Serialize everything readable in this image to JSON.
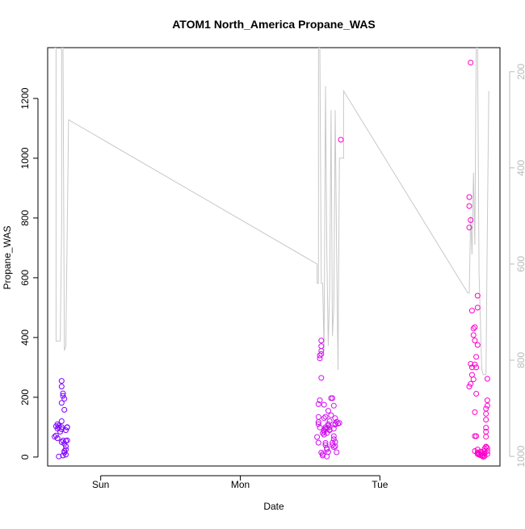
{
  "chart_data": {
    "type": "scatter",
    "title": "ATOM1 North_America Propane_WAS",
    "xlabel": "Date",
    "ylabel": "Propane_WAS",
    "x_ticks": [
      {
        "label": "Sun",
        "x": 0.0
      },
      {
        "label": "Mon",
        "x": 1.0
      },
      {
        "label": "Tue",
        "x": 2.0
      }
    ],
    "xlim": [
      -0.38,
      2.86
    ],
    "ylim": [
      -30,
      1370
    ],
    "y_ticks": [
      0,
      200,
      400,
      600,
      800,
      1000,
      1200
    ],
    "y2_ticks": [
      200,
      400,
      600,
      800,
      1000
    ],
    "y2lim": [
      1020,
      150
    ],
    "y2_reversed": true,
    "colors": {
      "altitude_line": "#c8c8c8",
      "right_axis": "#bbbbbb",
      "early_points": "#6600ff",
      "late_points": "#ee00ee"
    },
    "series": [
      {
        "kind": "points",
        "color": "#8000ff",
        "points": [
          [
            -0.31,
            63
          ],
          [
            -0.33,
            68
          ],
          [
            -0.32,
            72
          ],
          [
            -0.31,
            95
          ],
          [
            -0.32,
            103
          ],
          [
            -0.31,
            110
          ],
          [
            -0.3,
            99
          ],
          [
            -0.3,
            105
          ],
          [
            -0.3,
            2
          ],
          [
            -0.29,
            85
          ],
          [
            -0.28,
            93
          ],
          [
            -0.28,
            100
          ],
          [
            -0.28,
            120
          ],
          [
            -0.28,
            181
          ],
          [
            -0.27,
            55
          ],
          [
            -0.28,
            50
          ],
          [
            -0.28,
            236
          ],
          [
            -0.28,
            255
          ],
          [
            -0.27,
            213
          ],
          [
            -0.27,
            205
          ],
          [
            -0.26,
            195
          ],
          [
            -0.26,
            158
          ],
          [
            -0.26,
            45
          ],
          [
            -0.26,
            20
          ],
          [
            -0.26,
            15
          ],
          [
            -0.27,
            5
          ],
          [
            -0.25,
            8
          ],
          [
            -0.25,
            25
          ],
          [
            -0.25,
            36
          ],
          [
            -0.25,
            54
          ],
          [
            -0.24,
            56
          ],
          [
            -0.25,
            90
          ],
          [
            -0.24,
            99
          ],
          [
            -0.24,
            100
          ]
        ]
      },
      {
        "kind": "points",
        "color": "#d010f0",
        "points": [
          [
            1.55,
            67
          ],
          [
            1.56,
            48
          ],
          [
            1.56,
            117
          ],
          [
            1.56,
            134
          ],
          [
            1.56,
            177
          ],
          [
            1.57,
            190
          ],
          [
            1.56,
            110
          ],
          [
            1.57,
            99
          ],
          [
            1.57,
            330
          ],
          [
            1.57,
            340
          ],
          [
            1.58,
            345
          ],
          [
            1.58,
            355
          ],
          [
            1.58,
            390
          ],
          [
            1.58,
            371
          ],
          [
            1.58,
            265
          ],
          [
            1.58,
            15
          ],
          [
            1.59,
            10
          ],
          [
            1.59,
            5
          ],
          [
            1.59,
            80
          ],
          [
            1.6,
            85
          ],
          [
            1.6,
            90
          ],
          [
            1.6,
            75
          ],
          [
            1.6,
            175
          ],
          [
            1.6,
            130
          ],
          [
            1.61,
            135
          ],
          [
            1.61,
            100
          ],
          [
            1.61,
            95
          ],
          [
            1.61,
            47
          ],
          [
            1.61,
            40
          ],
          [
            1.62,
            30
          ],
          [
            1.62,
            25
          ],
          [
            1.62,
            2
          ],
          [
            1.62,
            80
          ],
          [
            1.62,
            95
          ],
          [
            1.63,
            105
          ],
          [
            1.63,
            110
          ],
          [
            1.63,
            155
          ],
          [
            1.63,
            17
          ],
          [
            1.64,
            90
          ],
          [
            1.64,
            92
          ],
          [
            1.64,
            100
          ],
          [
            1.64,
            120
          ],
          [
            1.65,
            140
          ],
          [
            1.65,
            197
          ],
          [
            1.66,
            197
          ],
          [
            1.66,
            48
          ],
          [
            1.66,
            40
          ],
          [
            1.67,
            33
          ],
          [
            1.67,
            60
          ],
          [
            1.67,
            70
          ],
          [
            1.67,
            95
          ],
          [
            1.67,
            172
          ],
          [
            1.68,
            130
          ],
          [
            1.68,
            112
          ],
          [
            1.68,
            108
          ],
          [
            1.68,
            50
          ],
          [
            1.68,
            36
          ],
          [
            1.69,
            16
          ],
          [
            1.69,
            118
          ],
          [
            1.7,
            112
          ],
          [
            1.71,
            114
          ]
        ]
      },
      {
        "kind": "points",
        "color": "#ff00cc",
        "points": [
          [
            1.72,
            1062
          ]
        ]
      },
      {
        "kind": "points",
        "color": "#ff00cc",
        "points": [
          [
            2.65,
            1320
          ],
          [
            2.64,
            870
          ],
          [
            2.64,
            840
          ],
          [
            2.65,
            793
          ],
          [
            2.64,
            768
          ],
          [
            2.65,
            312
          ],
          [
            2.66,
            300
          ],
          [
            2.65,
            245
          ],
          [
            2.64,
            236
          ],
          [
            2.66,
            275
          ],
          [
            2.67,
            260
          ],
          [
            2.66,
            490
          ],
          [
            2.67,
            430
          ],
          [
            2.67,
            408
          ],
          [
            2.68,
            390
          ],
          [
            2.68,
            435
          ],
          [
            2.68,
            310
          ],
          [
            2.69,
            335
          ],
          [
            2.69,
            300
          ],
          [
            2.7,
            540
          ],
          [
            2.7,
            500
          ],
          [
            2.7,
            375
          ],
          [
            2.69,
            212
          ],
          [
            2.68,
            150
          ],
          [
            2.68,
            70
          ],
          [
            2.69,
            70
          ],
          [
            2.68,
            20
          ],
          [
            2.7,
            15
          ],
          [
            2.7,
            25
          ],
          [
            2.7,
            10
          ],
          [
            2.71,
            12
          ],
          [
            2.71,
            8
          ],
          [
            2.72,
            6
          ],
          [
            2.72,
            18
          ],
          [
            2.73,
            10
          ],
          [
            2.73,
            4
          ],
          [
            2.73,
            15
          ],
          [
            2.74,
            1
          ],
          [
            2.74,
            6
          ],
          [
            2.75,
            3
          ],
          [
            2.75,
            12
          ],
          [
            2.75,
            20
          ],
          [
            2.75,
            28
          ],
          [
            2.76,
            35
          ],
          [
            2.76,
            33
          ],
          [
            2.76,
            68
          ],
          [
            2.76,
            85
          ],
          [
            2.76,
            98
          ],
          [
            2.76,
            125
          ],
          [
            2.76,
            145
          ],
          [
            2.76,
            162
          ],
          [
            2.77,
            172
          ],
          [
            2.77,
            190
          ],
          [
            2.77,
            262
          ],
          [
            2.77,
            30
          ],
          [
            2.77,
            20
          ],
          [
            2.77,
            10
          ]
        ]
      },
      {
        "kind": "line",
        "axis": "right",
        "color": "#c8c8c8",
        "points": [
          [
            -0.33,
            150
          ],
          [
            -0.32,
            150
          ],
          [
            -0.32,
            760
          ],
          [
            -0.29,
            760
          ],
          [
            -0.28,
            520
          ],
          [
            -0.28,
            150
          ],
          [
            -0.27,
            150
          ],
          [
            -0.26,
            780
          ],
          [
            -0.25,
            770
          ],
          [
            -0.23,
            300
          ],
          [
            1.55,
            600
          ],
          [
            1.55,
            640
          ],
          [
            1.56,
            640
          ],
          [
            1.56,
            150
          ],
          [
            1.57,
            150
          ],
          [
            1.58,
            640
          ],
          [
            1.59,
            640
          ],
          [
            1.6,
            780
          ],
          [
            1.61,
            230
          ],
          [
            1.62,
            580
          ],
          [
            1.63,
            770
          ],
          [
            1.64,
            660
          ],
          [
            1.65,
            280
          ],
          [
            1.66,
            750
          ],
          [
            1.67,
            690
          ],
          [
            1.68,
            280
          ],
          [
            1.69,
            580
          ],
          [
            1.7,
            820
          ],
          [
            1.71,
            380
          ],
          [
            1.72,
            380
          ],
          [
            1.73,
            380
          ],
          [
            1.74,
            380
          ],
          [
            1.74,
            240
          ],
          [
            2.63,
            660
          ],
          [
            2.64,
            660
          ],
          [
            2.65,
            500
          ],
          [
            2.66,
            580
          ],
          [
            2.67,
            410
          ],
          [
            2.68,
            560
          ],
          [
            2.69,
            150
          ],
          [
            2.7,
            150
          ],
          [
            2.71,
            620
          ],
          [
            2.72,
            720
          ],
          [
            2.73,
            820
          ],
          [
            2.74,
            830
          ],
          [
            2.76,
            830
          ],
          [
            2.77,
            520
          ],
          [
            2.78,
            240
          ]
        ]
      }
    ]
  }
}
